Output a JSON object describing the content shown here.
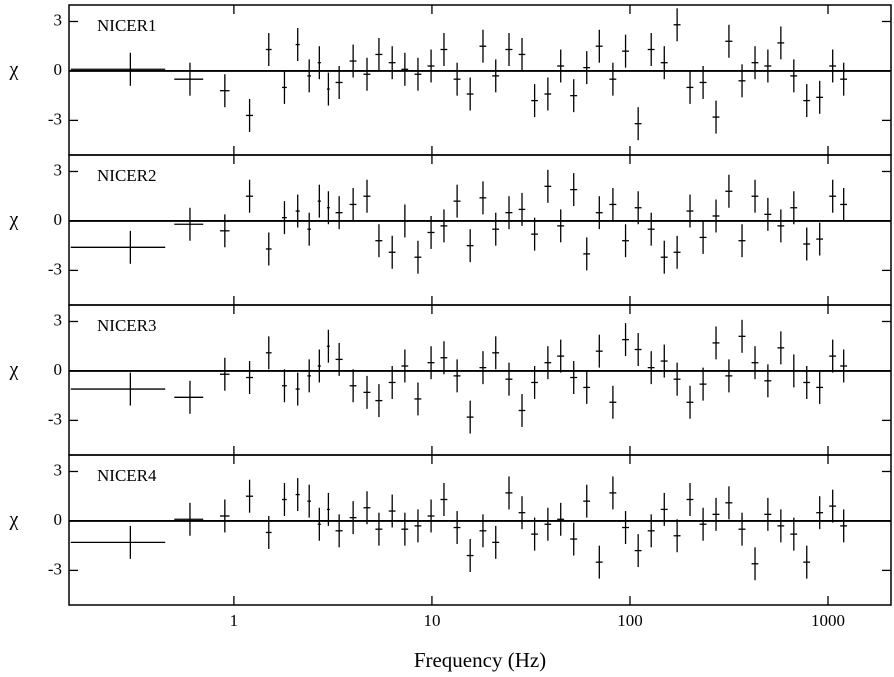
{
  "chart_data": {
    "type": "errorbar",
    "xlabel": "Frequency (Hz)",
    "ylabel": "χ",
    "log_x": true,
    "color": "#000000",
    "xlim": [
      0.147,
      2080
    ],
    "xticks": [
      1,
      10,
      100,
      1000
    ],
    "ylim": [
      -5.1,
      4.0
    ],
    "yticks": [
      -3,
      0,
      3
    ],
    "yerr": 1,
    "x": [
      0.3,
      0.6,
      0.9,
      1.2,
      1.5,
      1.8,
      2.1,
      2.4,
      2.7,
      3.0,
      3.4,
      4.0,
      4.7,
      5.4,
      6.3,
      7.3,
      8.5,
      9.9,
      11.5,
      13.4,
      15.6,
      18.1,
      21,
      24.5,
      28.5,
      33,
      38.5,
      44.7,
      52,
      60.5,
      70,
      82,
      95,
      110,
      128,
      149,
      173,
      201,
      234,
      272,
      316,
      368,
      428,
      497,
      578,
      672,
      781,
      908,
      1056,
      1200
    ],
    "xerr": [
      0.15,
      0.1,
      0.05,
      0.05,
      0.05,
      0.05,
      0.05,
      0.05,
      0.05,
      0.05,
      0.14,
      0.16,
      0.19,
      0.22,
      0.25,
      0.29,
      0.34,
      0.4,
      0.46,
      0.54,
      0.62,
      0.72,
      0.84,
      1,
      1.1,
      1.3,
      1.5,
      1.8,
      2.1,
      2.4,
      2.8,
      3.3,
      3.8,
      4.4,
      5.1,
      6,
      7,
      8,
      9.4,
      11,
      13,
      15,
      17,
      20,
      23,
      27,
      31,
      36,
      42,
      48
    ],
    "series": [
      {
        "name": "NICER1",
        "values": [
          0.1,
          -0.5,
          -1.2,
          -2.7,
          1.3,
          -1.0,
          1.6,
          -0.3,
          0.5,
          -1.1,
          -0.7,
          0.6,
          -0.2,
          1.0,
          0.5,
          0.1,
          -0.2,
          0.3,
          1.3,
          -0.5,
          -1.4,
          1.5,
          -0.3,
          1.3,
          1.0,
          -1.8,
          -1.4,
          0.3,
          -1.5,
          0.2,
          1.5,
          -0.5,
          1.2,
          -3.2,
          1.3,
          0.5,
          2.8,
          -1.0,
          -0.7,
          -2.8,
          1.8,
          -0.6,
          0.5,
          0.3,
          1.7,
          -0.3,
          -1.8,
          -1.6,
          0.3,
          -0.5
        ]
      },
      {
        "name": "NICER2",
        "values": [
          -1.6,
          -0.2,
          -0.6,
          1.5,
          -1.7,
          0.2,
          0.6,
          -0.5,
          1.2,
          0.8,
          0.5,
          1.0,
          1.5,
          -1.2,
          -1.9,
          0.0,
          -2.2,
          -0.7,
          -0.3,
          1.2,
          -1.5,
          1.4,
          -0.5,
          0.5,
          0.7,
          -0.8,
          2.1,
          -0.3,
          1.9,
          -2.0,
          0.5,
          1.0,
          -1.2,
          0.8,
          -0.5,
          -2.2,
          -1.9,
          0.6,
          -1.0,
          0.3,
          1.8,
          -1.2,
          1.5,
          0.4,
          -0.3,
          0.8,
          -1.4,
          -1.1,
          1.5,
          1.0
        ]
      },
      {
        "name": "NICER3",
        "values": [
          -1.1,
          -1.6,
          -0.2,
          -0.4,
          1.1,
          -0.9,
          -1.1,
          -0.3,
          0.3,
          1.5,
          0.7,
          -0.9,
          -1.3,
          -1.8,
          -0.7,
          0.3,
          -1.7,
          0.5,
          0.8,
          -0.3,
          -2.8,
          0.2,
          1.1,
          -0.5,
          -2.4,
          -0.7,
          0.5,
          0.9,
          -0.4,
          -1.0,
          1.2,
          -1.9,
          1.9,
          1.3,
          0.2,
          0.6,
          -0.5,
          -1.9,
          -0.8,
          1.7,
          -0.3,
          2.1,
          0.5,
          -0.6,
          1.4,
          0.0,
          -0.7,
          -1.0,
          0.9,
          0.3
        ]
      },
      {
        "name": "NICER4",
        "values": [
          -1.3,
          0.1,
          0.3,
          1.5,
          -0.7,
          1.3,
          1.6,
          1.2,
          -0.2,
          0.7,
          -0.6,
          0.2,
          0.8,
          -0.5,
          0.6,
          -0.5,
          -0.3,
          0.3,
          1.3,
          -0.4,
          -2.1,
          -0.6,
          -1.3,
          1.7,
          0.5,
          -0.8,
          -0.2,
          0.1,
          -1.1,
          1.2,
          -2.5,
          1.7,
          -0.4,
          -1.8,
          -0.6,
          0.7,
          -0.9,
          1.3,
          -0.2,
          0.4,
          1.1,
          -0.5,
          -2.6,
          0.4,
          -0.3,
          -0.8,
          -2.5,
          0.5,
          0.9,
          -0.3
        ]
      }
    ]
  }
}
